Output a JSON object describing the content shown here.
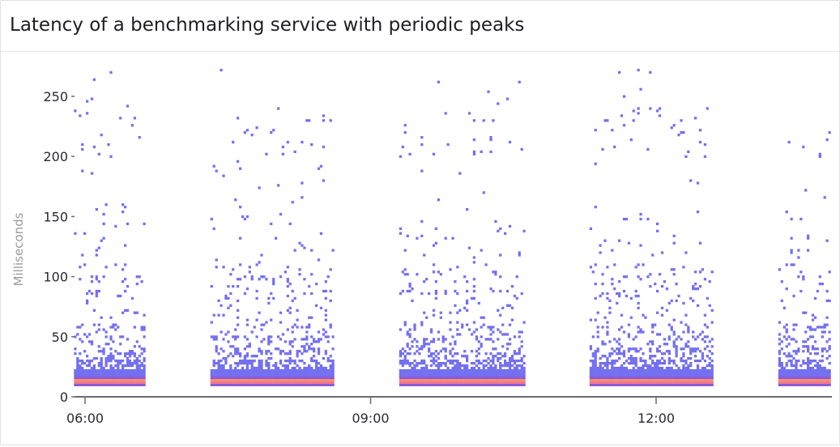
{
  "chart_data": {
    "type": "heatmap",
    "title": "Latency of a benchmarking service with periodic peaks",
    "xlabel": "",
    "ylabel": "Milliseconds",
    "x_ticks": [
      "06:00",
      "09:00",
      "12:00"
    ],
    "y_ticks": [
      0,
      50,
      100,
      150,
      200,
      250
    ],
    "xlim": [
      "05:53",
      "14:21"
    ],
    "ylim": [
      0,
      275
    ],
    "grid": false,
    "legend": "none",
    "active_windows": [
      {
        "start": "05:53",
        "end": "06:38"
      },
      {
        "start": "07:19",
        "end": "08:37"
      },
      {
        "start": "09:18",
        "end": "10:37"
      },
      {
        "start": "11:18",
        "end": "12:36"
      },
      {
        "start": "13:17",
        "end": "14:21"
      }
    ],
    "bucket_minutes": 1.5,
    "bucket_ms": 2,
    "dense_band_ms": [
      9,
      23
    ],
    "peak_band_ms": 13.5,
    "max_latency_ms": 272,
    "colors": {
      "sparse": "#7470f0",
      "dense": "#8a5ad8",
      "hot": "#f4788a",
      "hottest": "#fb8e6a"
    }
  }
}
